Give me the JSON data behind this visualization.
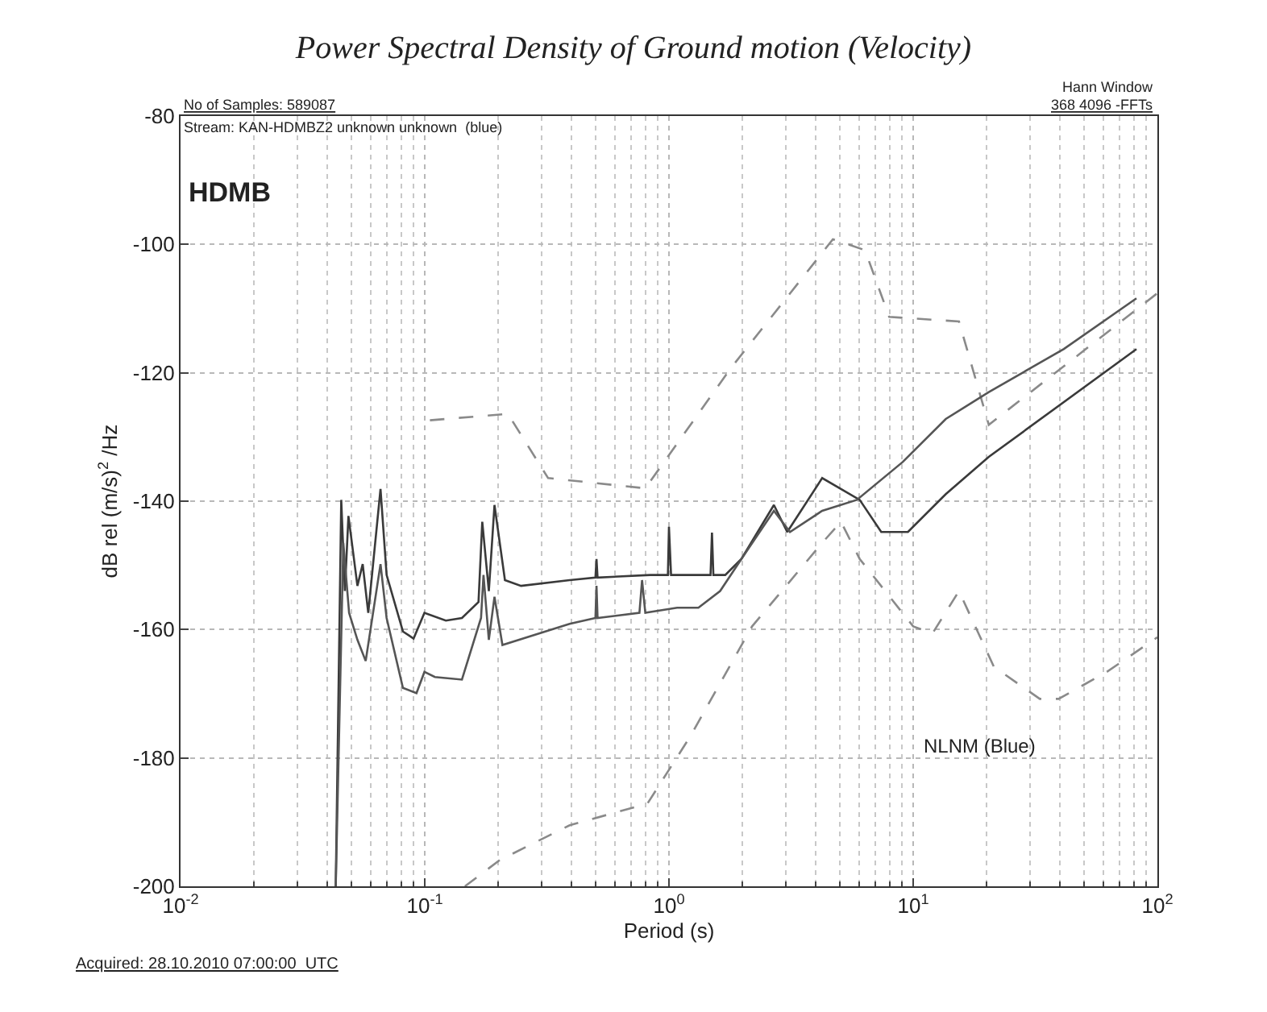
{
  "chart_data": {
    "type": "line",
    "title": "Power Spectral Density of Ground motion (Velocity)",
    "xlabel": "Period (s)",
    "ylabel": "dB rel (m/s)$^{2}$ /Hz",
    "log": "x",
    "grid": true,
    "marker": "none",
    "xlim": [
      0.01,
      100
    ],
    "ylim": [
      -200,
      -80
    ],
    "xticks": [
      {
        "value": 0.01,
        "label": "10$^{-2}$"
      },
      {
        "value": 0.1,
        "label": "10$^{-1}$"
      },
      {
        "value": 1,
        "label": "10$^{0}$"
      },
      {
        "value": 10,
        "label": "10$^{1}$"
      },
      {
        "value": 100,
        "label": "10$^{2}$"
      }
    ],
    "yticks": [
      -200,
      -180,
      -160,
      -140,
      -120,
      -100,
      -80
    ],
    "series": [
      {
        "color": "#8a8a8a",
        "line_style": "dashed",
        "x": [
          0.105,
          0.219,
          0.32,
          0.8,
          1.79,
          4.69,
          6.35,
          7.98,
          15.4,
          20.4,
          100
        ],
        "values": [
          -127.4,
          -126.4,
          -136.4,
          -138.0,
          -119.3,
          -99.2,
          -100.9,
          -111.3,
          -112.0,
          -128.1,
          -107.6
        ]
      },
      {
        "color": "#8a8a8a",
        "line_style": "dashed",
        "x": [
          0.146,
          0.203,
          0.392,
          0.817,
          1.22,
          2.19,
          4.24,
          5.06,
          6.04,
          10.0,
          12.0,
          15.4,
          21.4,
          33.0,
          39.4,
          62.1,
          100
        ],
        "values": [
          -200.0,
          -195.9,
          -190.5,
          -187.1,
          -176.7,
          -159.5,
          -146.5,
          -143.2,
          -149.0,
          -159.5,
          -160.6,
          -154.0,
          -165.8,
          -170.8,
          -170.8,
          -166.6,
          -161.2
        ]
      },
      {
        "color": "#3a3a3a",
        "line_style": "solid",
        "x": [
          0.0432,
          0.0455,
          0.0471,
          0.0487,
          0.053,
          0.0557,
          0.0587,
          0.0659,
          0.0698,
          0.0814,
          0.09,
          0.0997,
          0.122,
          0.142,
          0.166,
          0.172,
          0.183,
          0.193,
          0.213,
          0.248,
          0.392,
          0.5,
          0.505,
          0.51,
          0.838,
          0.99,
          1.0,
          1.02,
          1.08,
          1.32,
          1.48,
          1.5,
          1.52,
          1.7,
          1.98,
          2.69,
          3.05,
          4.24,
          6.04,
          7.4,
          9.52,
          13.6,
          20.4,
          82.1
        ],
        "values": [
          -200.0,
          -139.8,
          -154.0,
          -142.3,
          -153.2,
          -149.8,
          -157.4,
          -138.1,
          -151.5,
          -160.3,
          -161.4,
          -157.4,
          -158.6,
          -158.2,
          -155.7,
          -143.2,
          -154.0,
          -140.6,
          -152.3,
          -153.2,
          -152.3,
          -151.9,
          -149.0,
          -151.9,
          -151.5,
          -151.5,
          -144.0,
          -151.5,
          -151.5,
          -151.5,
          -151.5,
          -144.9,
          -151.5,
          -151.5,
          -149.0,
          -140.6,
          -144.8,
          -136.4,
          -139.8,
          -144.8,
          -144.8,
          -138.9,
          -133.1,
          -116.3
        ]
      },
      {
        "color": "#555555",
        "line_style": "solid",
        "x": [
          0.0432,
          0.0464,
          0.049,
          0.053,
          0.0573,
          0.0659,
          0.0698,
          0.0814,
          0.0925,
          0.0997,
          0.11,
          0.142,
          0.17,
          0.174,
          0.183,
          0.193,
          0.208,
          0.392,
          0.5,
          0.505,
          0.51,
          0.757,
          0.776,
          0.8,
          1.08,
          1.32,
          1.62,
          1.98,
          2.69,
          3.13,
          4.24,
          5.88,
          9.06,
          13.6,
          20.4,
          41.4,
          82.1
        ],
        "values": [
          -200.0,
          -146.5,
          -157.4,
          -161.6,
          -164.9,
          -149.8,
          -158.2,
          -169.1,
          -169.9,
          -166.6,
          -167.4,
          -167.8,
          -158.2,
          -151.5,
          -161.6,
          -154.9,
          -162.4,
          -159.1,
          -158.2,
          -153.2,
          -158.2,
          -157.4,
          -152.3,
          -157.4,
          -156.6,
          -156.6,
          -154.0,
          -149.0,
          -141.5,
          -144.8,
          -141.5,
          -139.8,
          -133.9,
          -127.2,
          -123.0,
          -116.3,
          -108.4
        ]
      }
    ],
    "annotations": [
      "No of Samples: 589087",
      "Stream: KAN-HDMBZ2 unknown unknown  (blue)",
      "HDMB",
      "Hann Window",
      "368 4096 -FFTs",
      "Acquired: 28.10.2010 07:00:00  UTC",
      "NLNM (Blue)"
    ]
  }
}
